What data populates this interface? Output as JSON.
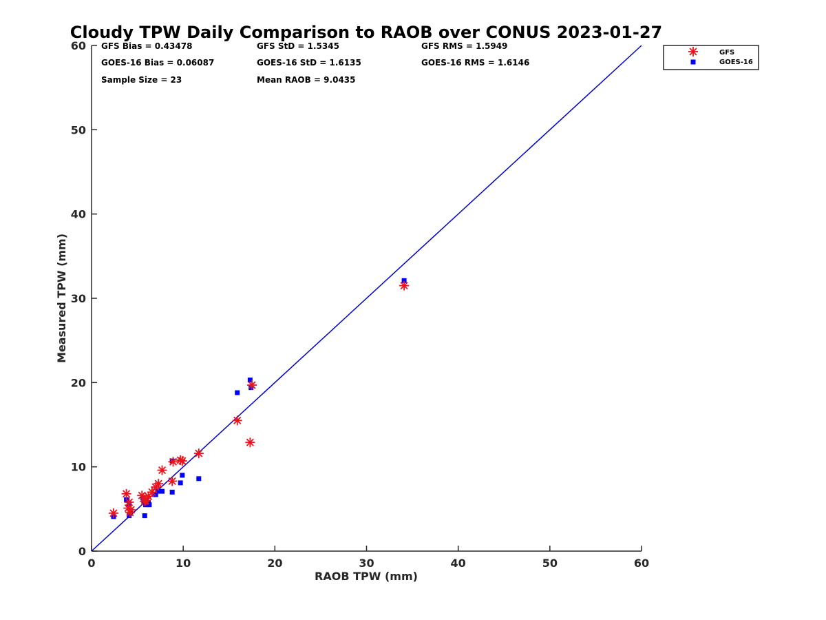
{
  "chart_data": {
    "type": "scatter",
    "title": "Cloudy TPW Daily Comparison to RAOB over CONUS 2023-01-27",
    "xlabel": "RAOB TPW (mm)",
    "ylabel": "Measured TPW (mm)",
    "xlim": [
      0,
      60
    ],
    "ylim": [
      0,
      60
    ],
    "xticks": [
      "0",
      "10",
      "20",
      "30",
      "40",
      "50",
      "60"
    ],
    "yticks": [
      "0",
      "10",
      "20",
      "30",
      "40",
      "50",
      "60"
    ],
    "grid": false,
    "legend_position": "top-right-outside",
    "reference_line": {
      "from": [
        0,
        0
      ],
      "to": [
        60,
        60
      ],
      "color": "#0000cc"
    },
    "stats": {
      "gfs_bias": "GFS Bias = 0.43478",
      "goes_bias": "GOES-16 Bias = 0.06087",
      "sample_size": "Sample Size = 23",
      "gfs_std": "GFS StD = 1.5345",
      "goes_std": "GOES-16 StD = 1.6135",
      "mean_raob": "Mean RAOB = 9.0435",
      "gfs_rms": "GFS RMS = 1.5949",
      "goes_rms": "GOES-16 RMS = 1.6146"
    },
    "series": [
      {
        "name": "GFS",
        "marker": "asterisk",
        "color": "#e8141e",
        "points": [
          [
            2.4,
            4.5
          ],
          [
            3.8,
            6.8
          ],
          [
            4.0,
            5.1
          ],
          [
            4.1,
            5.8
          ],
          [
            4.2,
            4.6
          ],
          [
            4.3,
            4.9
          ],
          [
            5.5,
            6.6
          ],
          [
            5.8,
            5.9
          ],
          [
            6.2,
            6.5
          ],
          [
            7.0,
            7.6
          ],
          [
            7.3,
            8.0
          ],
          [
            7.7,
            9.6
          ],
          [
            8.8,
            8.3
          ],
          [
            8.9,
            10.6
          ],
          [
            9.7,
            10.8
          ],
          [
            9.9,
            10.7
          ],
          [
            11.7,
            11.6
          ],
          [
            15.9,
            15.5
          ],
          [
            17.3,
            12.9
          ],
          [
            17.5,
            19.7
          ],
          [
            34.1,
            31.5
          ],
          [
            5.9,
            6.0
          ],
          [
            6.6,
            7.0
          ]
        ]
      },
      {
        "name": "GOES-16",
        "marker": "square",
        "color": "#0000ff",
        "points": [
          [
            2.4,
            4.1
          ],
          [
            3.8,
            6.1
          ],
          [
            4.1,
            5.6
          ],
          [
            4.1,
            4.2
          ],
          [
            4.2,
            4.5
          ],
          [
            5.6,
            6.3
          ],
          [
            5.8,
            4.2
          ],
          [
            5.9,
            5.5
          ],
          [
            6.2,
            5.8
          ],
          [
            6.3,
            5.5
          ],
          [
            7.0,
            6.7
          ],
          [
            7.2,
            7.1
          ],
          [
            7.7,
            7.1
          ],
          [
            8.8,
            7.0
          ],
          [
            8.8,
            10.7
          ],
          [
            9.7,
            8.1
          ],
          [
            9.9,
            9.0
          ],
          [
            11.7,
            8.6
          ],
          [
            15.9,
            18.8
          ],
          [
            17.3,
            20.3
          ],
          [
            17.4,
            19.4
          ],
          [
            34.1,
            32.1
          ],
          [
            5.7,
            5.9
          ]
        ]
      }
    ]
  }
}
